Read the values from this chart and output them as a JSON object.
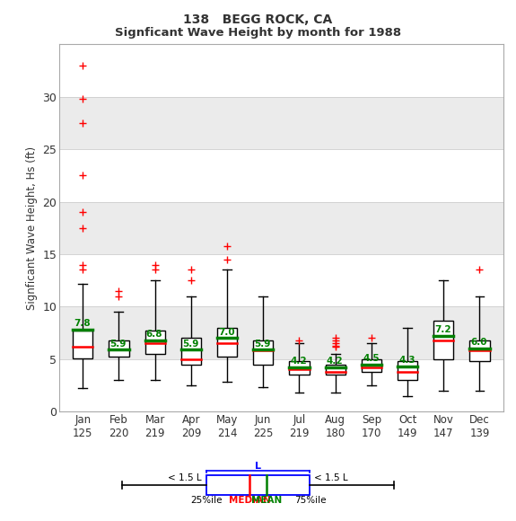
{
  "title1": "138   BEGG ROCK, CA",
  "title2": "Signficant Wave Height by month for 1988",
  "ylabel": "Signficant Wave Height, Hs (ft)",
  "months": [
    "Jan",
    "Feb",
    "Mar",
    "Apr",
    "May",
    "Jun",
    "Jul",
    "Aug",
    "Sep",
    "Oct",
    "Nov",
    "Dec"
  ],
  "counts": [
    125,
    220,
    219,
    209,
    214,
    225,
    219,
    180,
    170,
    149,
    147,
    139
  ],
  "means": [
    7.8,
    5.9,
    6.8,
    5.9,
    7.0,
    5.9,
    4.2,
    4.2,
    4.5,
    4.3,
    7.2,
    6.0
  ],
  "boxes": [
    {
      "q1": 5.1,
      "median": 6.2,
      "q3": 7.7,
      "whislo": 2.2,
      "whishi": 12.2
    },
    {
      "q1": 5.2,
      "median": 5.9,
      "q3": 6.8,
      "whislo": 3.0,
      "whishi": 9.5
    },
    {
      "q1": 5.5,
      "median": 6.5,
      "q3": 7.7,
      "whislo": 3.0,
      "whishi": 12.5
    },
    {
      "q1": 4.5,
      "median": 5.0,
      "q3": 7.0,
      "whislo": 2.5,
      "whishi": 11.0
    },
    {
      "q1": 5.2,
      "median": 6.5,
      "q3": 8.0,
      "whislo": 2.8,
      "whishi": 13.5
    },
    {
      "q1": 4.5,
      "median": 5.8,
      "q3": 6.8,
      "whislo": 2.3,
      "whishi": 11.0
    },
    {
      "q1": 3.5,
      "median": 4.0,
      "q3": 4.8,
      "whislo": 1.8,
      "whishi": 6.5
    },
    {
      "q1": 3.5,
      "median": 3.8,
      "q3": 4.5,
      "whislo": 1.8,
      "whishi": 5.5
    },
    {
      "q1": 3.8,
      "median": 4.2,
      "q3": 5.0,
      "whislo": 2.5,
      "whishi": 6.5
    },
    {
      "q1": 3.0,
      "median": 3.8,
      "q3": 4.8,
      "whislo": 1.5,
      "whishi": 8.0
    },
    {
      "q1": 5.0,
      "median": 6.8,
      "q3": 8.7,
      "whislo": 2.0,
      "whishi": 12.5
    },
    {
      "q1": 4.8,
      "median": 5.8,
      "q3": 6.8,
      "whislo": 2.0,
      "whishi": 11.0
    }
  ],
  "outliers": [
    [
      14.0,
      13.5,
      19.0,
      17.5,
      22.5,
      27.5,
      29.8,
      33.0
    ],
    [
      11.0,
      11.5
    ],
    [
      14.0,
      13.5
    ],
    [
      13.5,
      12.5
    ],
    [
      14.5,
      15.8
    ],
    [],
    [
      6.8
    ],
    [
      6.3,
      6.5,
      6.8,
      7.0,
      6.2
    ],
    [
      7.0
    ],
    [],
    [],
    [
      13.5
    ]
  ],
  "ylim": [
    0,
    35
  ],
  "yticks": [
    0,
    5,
    10,
    15,
    20,
    25,
    30
  ],
  "box_width": 0.55,
  "box_facecolor": "white",
  "box_edgecolor": "black",
  "median_color": "red",
  "mean_color": "green",
  "outlier_color": "red",
  "whisker_color": "black",
  "bg_color": "#ebebeb",
  "band_colors": [
    "white",
    "#ebebeb"
  ],
  "title_fontsize": 10,
  "subtitle_fontsize": 9.5
}
